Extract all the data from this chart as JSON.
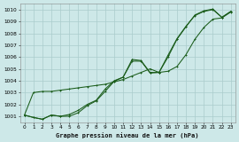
{
  "title": "Graphe pression niveau de la mer (hPa)",
  "bg_color": "#cde8e8",
  "line_color": "#1a5c1a",
  "xlim": [
    -0.5,
    23.5
  ],
  "ylim": [
    1000.5,
    1010.5
  ],
  "xticks": [
    0,
    1,
    2,
    3,
    4,
    5,
    6,
    7,
    8,
    9,
    10,
    11,
    12,
    13,
    14,
    15,
    16,
    17,
    18,
    19,
    20,
    21,
    22,
    23
  ],
  "yticks": [
    1001,
    1002,
    1003,
    1004,
    1005,
    1006,
    1007,
    1008,
    1009,
    1010
  ],
  "series1_x": [
    0,
    1,
    2,
    3,
    4,
    5,
    6,
    7,
    8,
    9,
    10,
    11,
    12,
    13,
    14,
    15,
    16,
    17,
    18,
    19,
    20,
    21,
    22,
    23
  ],
  "series1_y": [
    1001.1,
    1003.0,
    1003.1,
    1003.1,
    1003.2,
    1003.3,
    1003.4,
    1003.5,
    1003.6,
    1003.7,
    1003.9,
    1004.1,
    1004.4,
    1004.7,
    1005.0,
    1004.7,
    1004.8,
    1005.2,
    1006.2,
    1007.5,
    1008.5,
    1009.2,
    1009.3,
    1009.8
  ],
  "series2_x": [
    0,
    1,
    2,
    3,
    4,
    5,
    6,
    7,
    8,
    9,
    10,
    11,
    12,
    13,
    14,
    15,
    16,
    17,
    18,
    19,
    20,
    21,
    22,
    23
  ],
  "series2_y": [
    1001.1,
    1000.9,
    1000.75,
    1001.1,
    1001.0,
    1001.15,
    1001.5,
    1002.0,
    1002.35,
    1003.3,
    1004.0,
    1004.3,
    1005.8,
    1005.7,
    1004.7,
    1004.7,
    1006.15,
    1007.55,
    1008.6,
    1009.5,
    1009.85,
    1010.0,
    1009.35,
    1009.85
  ],
  "series3_x": [
    0,
    1,
    2,
    3,
    4,
    5,
    6,
    7,
    8,
    9,
    10,
    11,
    12,
    13,
    14,
    15,
    16,
    17,
    18,
    19,
    20,
    21,
    22,
    23
  ],
  "series3_y": [
    1001.1,
    1000.9,
    1000.75,
    1001.1,
    1001.0,
    1001.0,
    1001.3,
    1001.9,
    1002.3,
    1003.1,
    1003.95,
    1004.3,
    1005.65,
    1005.65,
    1004.65,
    1004.7,
    1006.0,
    1007.5,
    1008.55,
    1009.55,
    1009.9,
    1010.05,
    1009.35,
    1009.85
  ]
}
